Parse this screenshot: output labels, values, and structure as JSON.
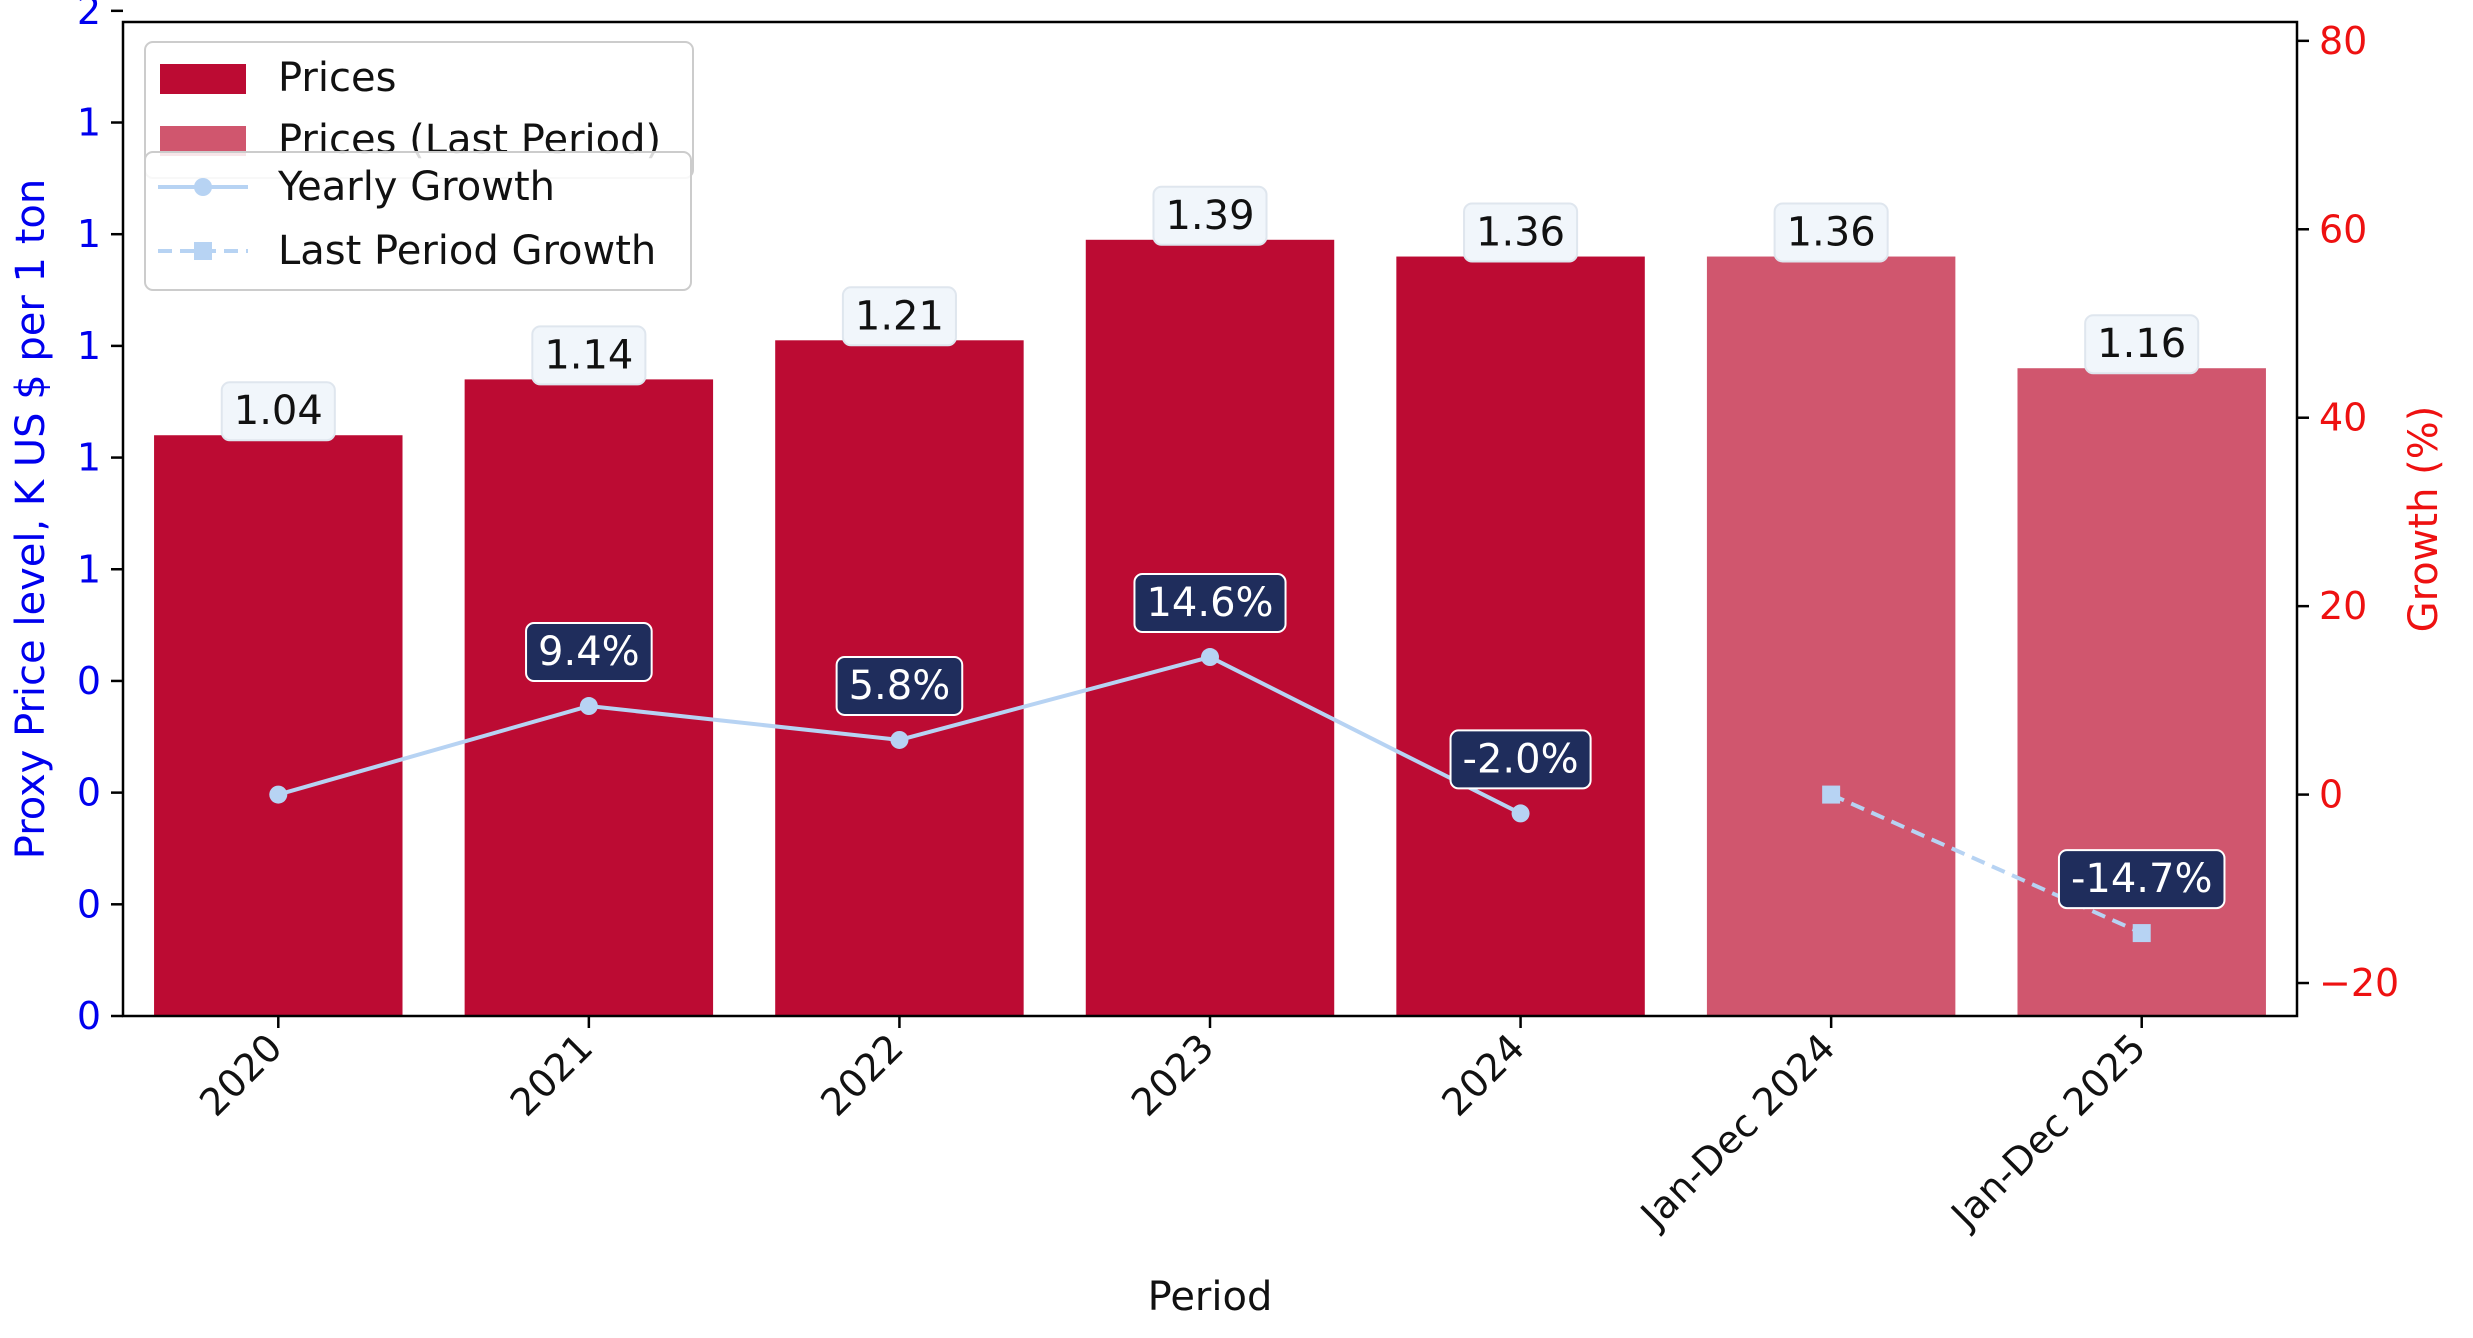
{
  "chart_data": {
    "type": "bar",
    "title": "",
    "xlabel": "Period",
    "ylabel_left": "Proxy Price level, K US $ per 1 ton",
    "ylabel_right": "Growth (%)",
    "categories": [
      "2020",
      "2021",
      "2022",
      "2023",
      "2024",
      "Jan-Dec 2024",
      "Jan-Dec 2025"
    ],
    "y_left_ticks": [
      {
        "value": 0.0,
        "label": "0"
      },
      {
        "value": 0.2,
        "label": "0"
      },
      {
        "value": 0.4,
        "label": "0"
      },
      {
        "value": 0.6,
        "label": "0"
      },
      {
        "value": 0.8,
        "label": "1"
      },
      {
        "value": 1.0,
        "label": "1"
      },
      {
        "value": 1.2,
        "label": "1"
      },
      {
        "value": 1.4,
        "label": "1"
      },
      {
        "value": 1.6,
        "label": "1"
      },
      {
        "value": 1.8,
        "label": "2"
      }
    ],
    "ylim_left": [
      0,
      1.78
    ],
    "y_right_ticks": [
      {
        "value": -20,
        "label": "−20"
      },
      {
        "value": 0,
        "label": "0"
      },
      {
        "value": 20,
        "label": "20"
      },
      {
        "value": 40,
        "label": "40"
      },
      {
        "value": 60,
        "label": "60"
      },
      {
        "value": 80,
        "label": "80"
      }
    ],
    "ylim_right": [
      -23.5,
      82
    ],
    "bars": [
      {
        "category": "2020",
        "value": 1.04,
        "label": "1.04",
        "series": "Prices"
      },
      {
        "category": "2021",
        "value": 1.14,
        "label": "1.14",
        "series": "Prices"
      },
      {
        "category": "2022",
        "value": 1.21,
        "label": "1.21",
        "series": "Prices"
      },
      {
        "category": "2023",
        "value": 1.39,
        "label": "1.39",
        "series": "Prices"
      },
      {
        "category": "2024",
        "value": 1.36,
        "label": "1.36",
        "series": "Prices"
      },
      {
        "category": "Jan-Dec 2024",
        "value": 1.36,
        "label": "1.36",
        "series": "Prices (Last Period)"
      },
      {
        "category": "Jan-Dec 2025",
        "value": 1.16,
        "label": "1.16",
        "series": "Prices (Last Period)"
      }
    ],
    "lines": [
      {
        "name": "Yearly Growth",
        "style": "solid",
        "marker": "circle",
        "points": [
          {
            "category": "2020",
            "value": 0.0,
            "label": ""
          },
          {
            "category": "2021",
            "value": 9.4,
            "label": "9.4%"
          },
          {
            "category": "2022",
            "value": 5.8,
            "label": "5.8%"
          },
          {
            "category": "2023",
            "value": 14.6,
            "label": "14.6%"
          },
          {
            "category": "2024",
            "value": -2.0,
            "label": "-2.0%"
          }
        ]
      },
      {
        "name": "Last Period Growth",
        "style": "dashed",
        "marker": "square",
        "points": [
          {
            "category": "Jan-Dec 2024",
            "value": 0.0,
            "label": ""
          },
          {
            "category": "Jan-Dec 2025",
            "value": -14.7,
            "label": "-14.7%"
          }
        ]
      }
    ],
    "legend_bars": [
      "Prices",
      "Prices (Last Period)"
    ],
    "legend_lines": [
      "Yearly Growth",
      "Last Period Growth"
    ],
    "legend_position": "top-left",
    "grid": false,
    "colors": {
      "bar_main": "#bc0b33",
      "bar_last": "#d0566e",
      "line": "#b7d3f3",
      "left_axis": "#0000ee",
      "right_axis": "#ee1111",
      "growth_box": "#1f2d5c",
      "value_box": "#f1f6fb"
    }
  }
}
